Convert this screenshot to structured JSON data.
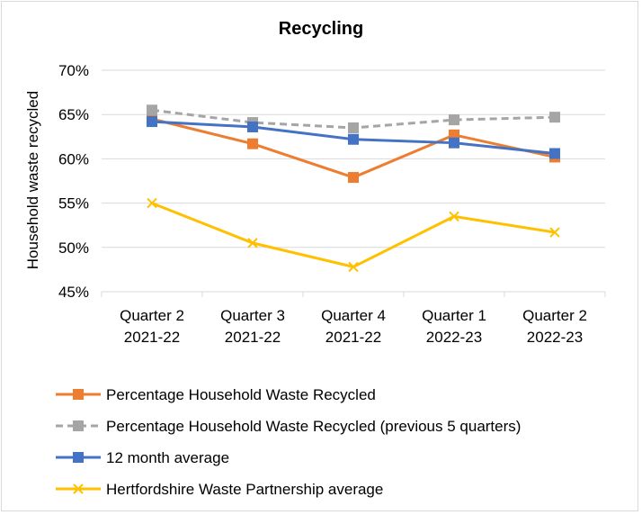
{
  "chart_data": {
    "type": "line",
    "title": "Recycling",
    "xlabel": "",
    "ylabel": "Household waste recycled",
    "ylim": [
      45,
      70
    ],
    "ystep": 5,
    "y_tick_labels": [
      "45%",
      "50%",
      "55%",
      "60%",
      "65%",
      "70%"
    ],
    "grid": true,
    "legend_position": "bottom",
    "categories": [
      [
        "Quarter 2",
        "2021-22"
      ],
      [
        "Quarter 3",
        "2021-22"
      ],
      [
        "Quarter 4",
        "2021-22"
      ],
      [
        "Quarter 1",
        "2022-23"
      ],
      [
        "Quarter 2",
        "2022-23"
      ]
    ],
    "series": [
      {
        "name": "Percentage Household Waste Recycled",
        "values": [
          64.5,
          61.7,
          57.9,
          62.7,
          60.2
        ],
        "color": "#ED7D31",
        "marker": "square",
        "dash": "solid"
      },
      {
        "name": "Percentage Household Waste Recycled (previous 5 quarters)",
        "values": [
          65.5,
          64.1,
          63.5,
          64.4,
          64.7
        ],
        "color": "#A5A5A5",
        "marker": "square",
        "dash": "dashed"
      },
      {
        "name": "12 month average",
        "values": [
          64.2,
          63.6,
          62.2,
          61.8,
          60.6
        ],
        "color": "#4472C4",
        "marker": "square",
        "dash": "solid"
      },
      {
        "name": "Hertfordshire Waste Partnership average",
        "values": [
          55.0,
          50.5,
          47.8,
          53.5,
          51.7
        ],
        "color": "#FFC000",
        "marker": "x",
        "dash": "solid"
      }
    ]
  }
}
